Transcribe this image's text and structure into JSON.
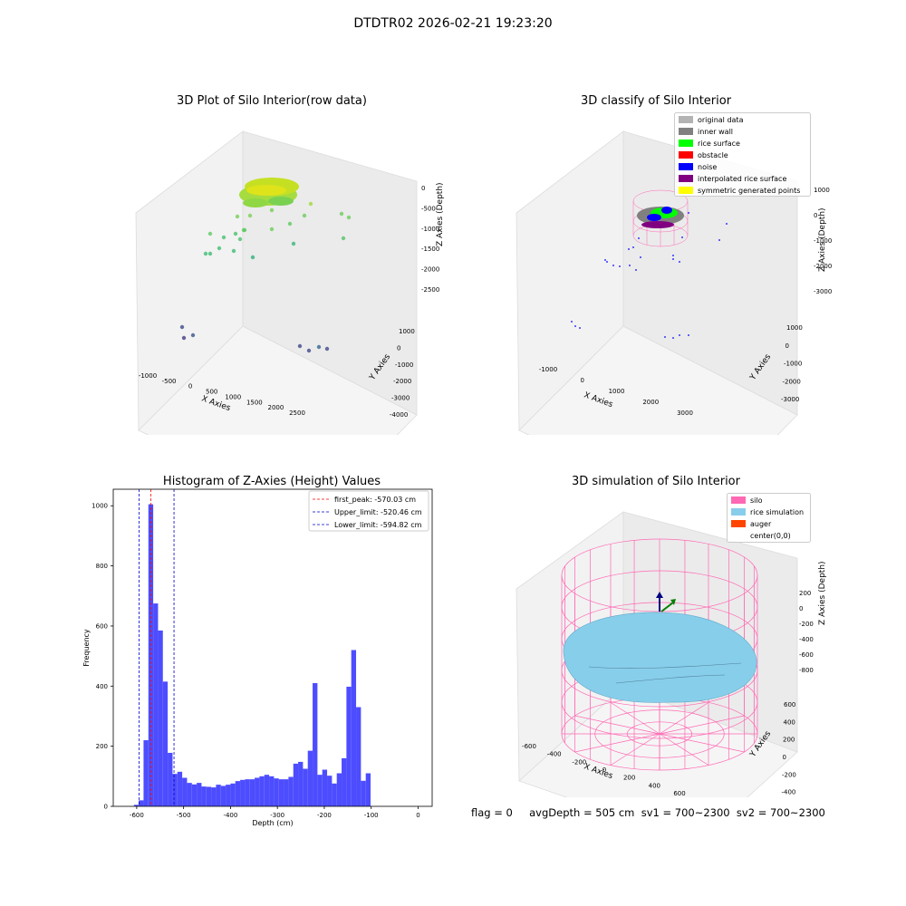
{
  "window_title": "DTDTR02 2026-02-21 19:23:20",
  "footer": "flag = 0     avgDepth = 505 cm  sv1 = 700~2300  sv2 = 700~2300",
  "colors": {
    "histogram_bar": "#4d4dff",
    "first_peak": "#ff0000",
    "limits": "#0000cc",
    "silo": "#ff69b4",
    "rice": "#87ceeb",
    "auger": "#ff4500"
  },
  "chart_data": [
    {
      "type": "scatter",
      "title": "3D Plot of Silo Interior(row data)",
      "xlabel": "X Axies",
      "ylabel": "Y Axies",
      "zlabel": "Z Axies (Depth)",
      "x_ticks": [
        "-1000",
        "-500",
        "0",
        "500",
        "1000",
        "1500",
        "2000",
        "2500"
      ],
      "y_ticks": [
        "1000",
        "0",
        "-1000",
        "-2000",
        "-3000",
        "-4000"
      ],
      "z_ticks": [
        "0",
        "-500",
        "-1000",
        "-1500",
        "-2000",
        "-2500"
      ],
      "colormap": "viridis"
    },
    {
      "type": "scatter",
      "title": "3D classify of Silo Interior",
      "xlabel": "X Axies",
      "ylabel": "Y Axies",
      "zlabel": "Z Axies (Depth)",
      "x_ticks": [
        "-1000",
        "0",
        "1000",
        "2000",
        "3000"
      ],
      "y_ticks": [
        "1000",
        "0",
        "-1000",
        "-2000",
        "-3000"
      ],
      "z_ticks": [
        "1000",
        "0",
        "-1000",
        "-2000",
        "-3000"
      ],
      "legend_position": "top-right",
      "legend": [
        {
          "label": "original data",
          "color": "#b3b3b3"
        },
        {
          "label": "inner wall",
          "color": "#808080"
        },
        {
          "label": "rice surface",
          "color": "#00ff00"
        },
        {
          "label": "obstacle",
          "color": "#ff0000"
        },
        {
          "label": "noise",
          "color": "#0000ff"
        },
        {
          "label": "interpolated rice surface",
          "color": "#800080"
        },
        {
          "label": "symmetric generated points",
          "color": "#ffff00"
        }
      ]
    },
    {
      "type": "bar",
      "title": "Histogram of Z-Axies (Height) Values",
      "xlabel": "Depth (cm)",
      "ylabel": "Frequency",
      "xlim": [
        -650,
        30
      ],
      "ylim": [
        0,
        1055
      ],
      "x_ticks": [
        "-600",
        "-500",
        "-400",
        "-300",
        "-200",
        "-100",
        "0"
      ],
      "y_ticks": [
        "0",
        "200",
        "400",
        "600",
        "800",
        "1000"
      ],
      "bin_start": -606,
      "bin_width": 10.3,
      "values": [
        5,
        20,
        220,
        1005,
        675,
        585,
        415,
        178,
        108,
        115,
        95,
        78,
        73,
        78,
        66,
        65,
        63,
        72,
        68,
        72,
        76,
        84,
        88,
        90,
        90,
        95,
        100,
        105,
        100,
        93,
        90,
        90,
        98,
        142,
        148,
        125,
        185,
        410,
        105,
        122,
        102,
        76,
        110,
        160,
        398,
        520,
        330,
        85,
        110
      ],
      "vlines": [
        {
          "label": "first_peak: -570.03 cm",
          "x": -570.03,
          "color": "#ff0000"
        },
        {
          "label": "Upper_limit: -520.46 cm",
          "x": -520.46,
          "color": "#0000cc"
        },
        {
          "label": "Lower_limit: -594.82 cm",
          "x": -594.82,
          "color": "#0000cc"
        }
      ],
      "legend_position": "top-right"
    },
    {
      "type": "scatter",
      "title": "3D simulation of Silo Interior",
      "xlabel": "X Axies",
      "ylabel": "Y Axies",
      "zlabel": "Z Axies (Depth)",
      "x_ticks": [
        "-600",
        "-400",
        "-200",
        "0",
        "200",
        "400",
        "600"
      ],
      "y_ticks": [
        "600",
        "400",
        "200",
        "0",
        "-200",
        "-400",
        "-600"
      ],
      "z_ticks": [
        "200",
        "0",
        "-200",
        "-400",
        "-600",
        "-800"
      ],
      "legend_position": "top-right",
      "legend": [
        {
          "label": "silo",
          "color": "#ff69b4"
        },
        {
          "label": "rice simulation",
          "color": "#87ceeb"
        },
        {
          "label": "auger",
          "color": "#ff4500"
        },
        {
          "label": "center(0,0)",
          "color": ""
        }
      ]
    }
  ]
}
